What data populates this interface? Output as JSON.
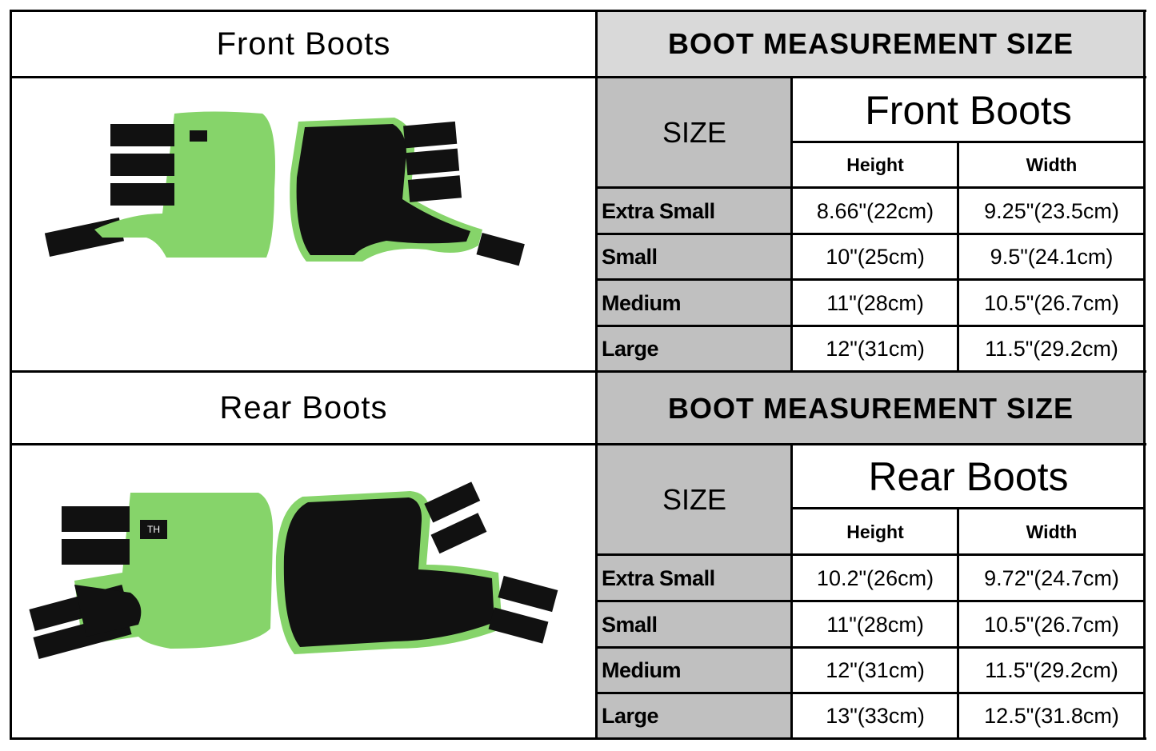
{
  "sections": [
    {
      "label": "Front Boots",
      "header": "BOOT MEASUREMENT SIZE",
      "table_title": "Front Boots",
      "size_label": "SIZE",
      "columns": [
        "Height",
        "Width"
      ],
      "rows": [
        {
          "size": "Extra Small",
          "height": "8.66\"(22cm)",
          "width": "9.25\"(23.5cm)"
        },
        {
          "size": "Small",
          "height": "10\"(25cm)",
          "width": "9.5\"(24.1cm)"
        },
        {
          "size": "Medium",
          "height": "11\"(28cm)",
          "width": "10.5\"(26.7cm)"
        },
        {
          "size": "Large",
          "height": "12\"(31cm)",
          "width": "11.5\"(29.2cm)"
        }
      ]
    },
    {
      "label": "Rear Boots",
      "header": "BOOT MEASUREMENT SIZE",
      "table_title": "Rear Boots",
      "size_label": "SIZE",
      "columns": [
        "Height",
        "Width"
      ],
      "rows": [
        {
          "size": "Extra Small",
          "height": "10.2\"(26cm)",
          "width": "9.72\"(24.7cm)"
        },
        {
          "size": "Small",
          "height": "11\"(28cm)",
          "width": "10.5\"(26.7cm)"
        },
        {
          "size": "Medium",
          "height": "12\"(31cm)",
          "width": "11.5\"(29.2cm)"
        },
        {
          "size": "Large",
          "height": "13\"(33cm)",
          "width": "12.5\"(31.8cm)"
        }
      ]
    }
  ],
  "colors": {
    "boot_green": "#86d46a",
    "strap": "#111111",
    "header_gray": "#c0c0c0",
    "header_light_gray": "#d9d9d9"
  },
  "logo_text": "TH"
}
